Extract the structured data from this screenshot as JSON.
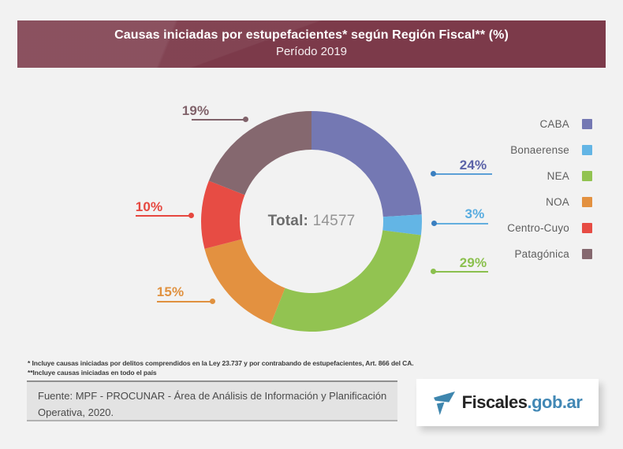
{
  "header": {
    "title": "Causas iniciadas por estupefacientes* según Región Fiscal** (%)",
    "subtitle": "Período 2019"
  },
  "chart_data": {
    "type": "pie",
    "variant": "donut",
    "title": "Causas iniciadas por estupefacientes según Región Fiscal (%) - Período 2019",
    "total_label": "Total:",
    "total_value": "14577",
    "start_angle_deg": 0,
    "direction": "clockwise",
    "legend_position": "right",
    "segments": [
      {
        "label": "CABA",
        "value_pct": 24,
        "pct_label": "24%",
        "color": "#7478b3",
        "callout_text_color": "#5c63a8",
        "callout_line_color": "#5b9fd6",
        "callout_dot_color": "#3a7fc0"
      },
      {
        "label": "Bonaerense",
        "value_pct": 3,
        "pct_label": "3%",
        "color": "#63b5e5",
        "callout_text_color": "#58ace0",
        "callout_line_color": "#63aede",
        "callout_dot_color": "#3a7fc0"
      },
      {
        "label": "NEA",
        "value_pct": 29,
        "pct_label": "29%",
        "color": "#92c351",
        "callout_text_color": "#8bc04e",
        "callout_line_color": "#8bc04e",
        "callout_dot_color": "#8bc04e"
      },
      {
        "label": "NOA",
        "value_pct": 15,
        "pct_label": "15%",
        "color": "#e39140",
        "callout_text_color": "#e0913f",
        "callout_line_color": "#e0913f",
        "callout_dot_color": "#e0913f"
      },
      {
        "label": "Centro-Cuyo",
        "value_pct": 10,
        "pct_label": "10%",
        "color": "#e74c44",
        "callout_text_color": "#e6473f",
        "callout_line_color": "#e6473f",
        "callout_dot_color": "#e6473f"
      },
      {
        "label": "Patagónica",
        "value_pct": 19,
        "pct_label": "19%",
        "color": "#85686f",
        "callout_text_color": "#80626a",
        "callout_line_color": "#80626a",
        "callout_dot_color": "#80626a"
      }
    ]
  },
  "legend": {
    "items": [
      {
        "label": "CABA",
        "color": "#7478b3"
      },
      {
        "label": "Bonaerense",
        "color": "#63b5e5"
      },
      {
        "label": "NEA",
        "color": "#92c351"
      },
      {
        "label": "NOA",
        "color": "#e39140"
      },
      {
        "label": "Centro-Cuyo",
        "color": "#e74c44"
      },
      {
        "label": "Patagónica",
        "color": "#85686f"
      }
    ]
  },
  "footnotes": {
    "line1": "* Incluye causas iniciadas por delitos comprendidos en la Ley 23.737 y por contrabando de estupefacientes, Art. 866 del CA.",
    "line2": "**Incluye causas iniciadas en todo el país"
  },
  "source": {
    "text": "Fuente: MPF - PROCUNAR - Área de Análisis de Información y Planificación Operativa, 2020."
  },
  "logo": {
    "name": "Fiscales",
    "domain": ".gob.ar"
  }
}
